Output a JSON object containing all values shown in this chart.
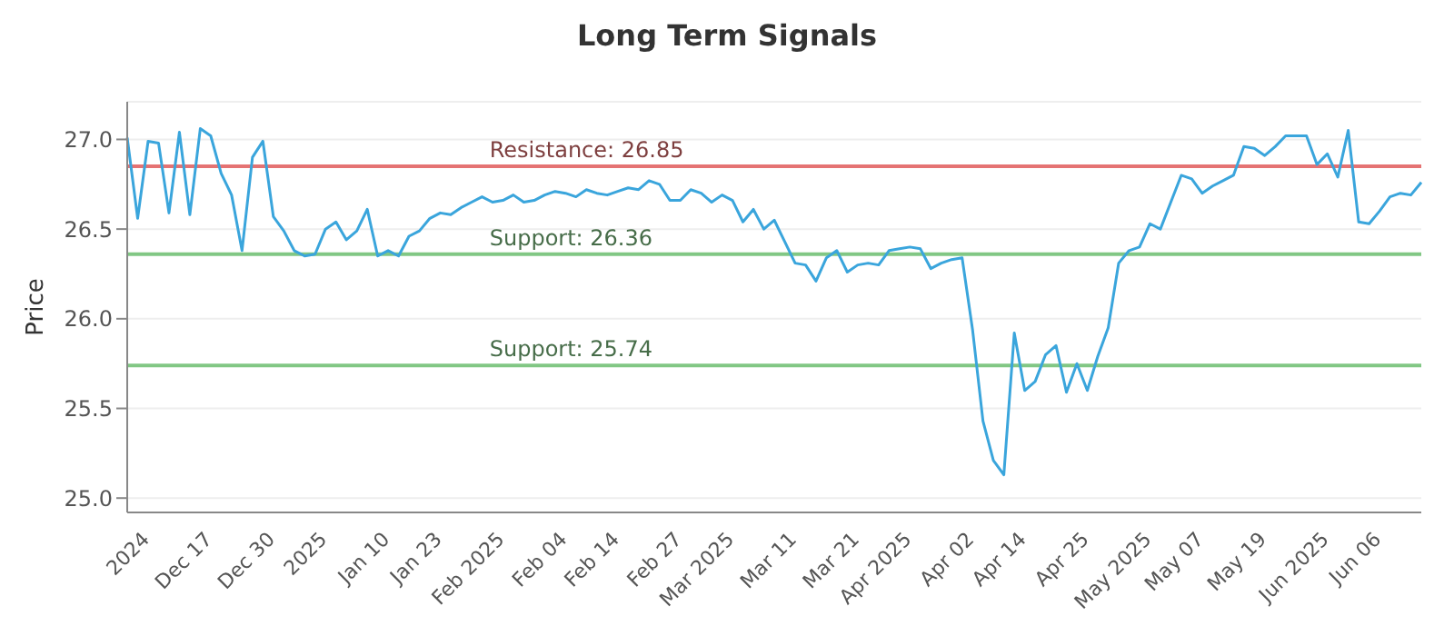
{
  "chart_data": {
    "type": "line",
    "title": "Long Term Signals",
    "ylabel": "Price",
    "categories": [
      null,
      null,
      "2024",
      null,
      null,
      null,
      null,
      null,
      "Dec 17",
      null,
      null,
      null,
      null,
      null,
      "Dec 30",
      null,
      null,
      null,
      null,
      "2025",
      null,
      null,
      null,
      null,
      null,
      "Jan 10",
      null,
      null,
      null,
      null,
      "Jan 23",
      null,
      null,
      null,
      null,
      null,
      "Feb 2025",
      null,
      null,
      null,
      null,
      null,
      "Feb 04",
      null,
      null,
      null,
      null,
      "Feb 14",
      null,
      null,
      null,
      null,
      null,
      "Feb 27",
      null,
      null,
      null,
      null,
      "Mar 2025",
      null,
      null,
      null,
      null,
      null,
      "Mar 11",
      null,
      null,
      null,
      null,
      null,
      "Mar 21",
      null,
      null,
      null,
      null,
      "Apr 2025",
      null,
      null,
      null,
      null,
      null,
      "Apr 02",
      null,
      null,
      null,
      null,
      "Apr 14",
      null,
      null,
      null,
      null,
      null,
      "Apr 25",
      null,
      null,
      null,
      null,
      null,
      "May 2025",
      null,
      null,
      null,
      null,
      "May 07",
      null,
      null,
      null,
      null,
      null,
      "May 19",
      null,
      null,
      null,
      null,
      null,
      "Jun 2025",
      null,
      null,
      null,
      null,
      "Jun 06",
      null,
      null,
      null,
      null
    ],
    "series": [
      {
        "color": "#3aa5dc",
        "values": [
          27.01,
          26.56,
          26.99,
          26.98,
          26.59,
          27.04,
          26.58,
          27.06,
          27.02,
          26.81,
          26.69,
          26.38,
          26.9,
          26.99,
          26.57,
          26.49,
          26.38,
          26.35,
          26.36,
          26.5,
          26.54,
          26.44,
          26.49,
          26.61,
          26.35,
          26.38,
          26.35,
          26.46,
          26.49,
          26.56,
          26.59,
          26.58,
          26.62,
          26.65,
          26.68,
          26.65,
          26.66,
          26.69,
          26.65,
          26.66,
          26.69,
          26.71,
          26.7,
          26.68,
          26.72,
          26.7,
          26.69,
          26.71,
          26.73,
          26.72,
          26.77,
          26.75,
          26.66,
          26.66,
          26.72,
          26.7,
          26.65,
          26.69,
          26.66,
          26.54,
          26.61,
          26.5,
          26.55,
          26.43,
          26.31,
          26.3,
          26.21,
          26.34,
          26.38,
          26.26,
          26.3,
          26.31,
          26.3,
          26.38,
          26.39,
          26.4,
          26.39,
          26.28,
          26.31,
          26.33,
          26.34,
          25.94,
          25.43,
          25.21,
          25.13,
          25.92,
          25.6,
          25.65,
          25.8,
          25.85,
          25.59,
          25.75,
          25.6,
          25.79,
          25.95,
          26.31,
          26.38,
          26.4,
          26.53,
          26.5,
          26.65,
          26.8,
          26.78,
          26.7,
          26.74,
          26.77,
          26.8,
          26.96,
          26.95,
          26.91,
          26.96,
          27.02,
          27.02,
          27.02,
          26.86,
          26.92,
          26.79,
          27.05,
          26.54,
          26.53,
          26.6,
          26.68,
          26.7,
          26.69,
          26.76
        ]
      }
    ],
    "ylim": [
      24.92,
      27.21
    ],
    "yticks": [
      {
        "value": 25,
        "label": "25.0"
      },
      {
        "value": 25.5,
        "label": "25.5"
      },
      {
        "value": 26,
        "label": "26.0"
      },
      {
        "value": 26.5,
        "label": "26.5"
      },
      {
        "value": 27,
        "label": "27.0"
      }
    ],
    "grid": "y",
    "ref_lines": [
      {
        "axis": "y",
        "value": 26.85,
        "label": "Resistance: 26.85",
        "color": "#e57373"
      },
      {
        "axis": "y",
        "value": 26.36,
        "label": "Support: 26.36",
        "color": "#81c784"
      },
      {
        "axis": "y",
        "value": 25.74,
        "label": "Support: 25.74",
        "color": "#81c784"
      }
    ],
    "marker": "none",
    "line_style": "solid"
  }
}
